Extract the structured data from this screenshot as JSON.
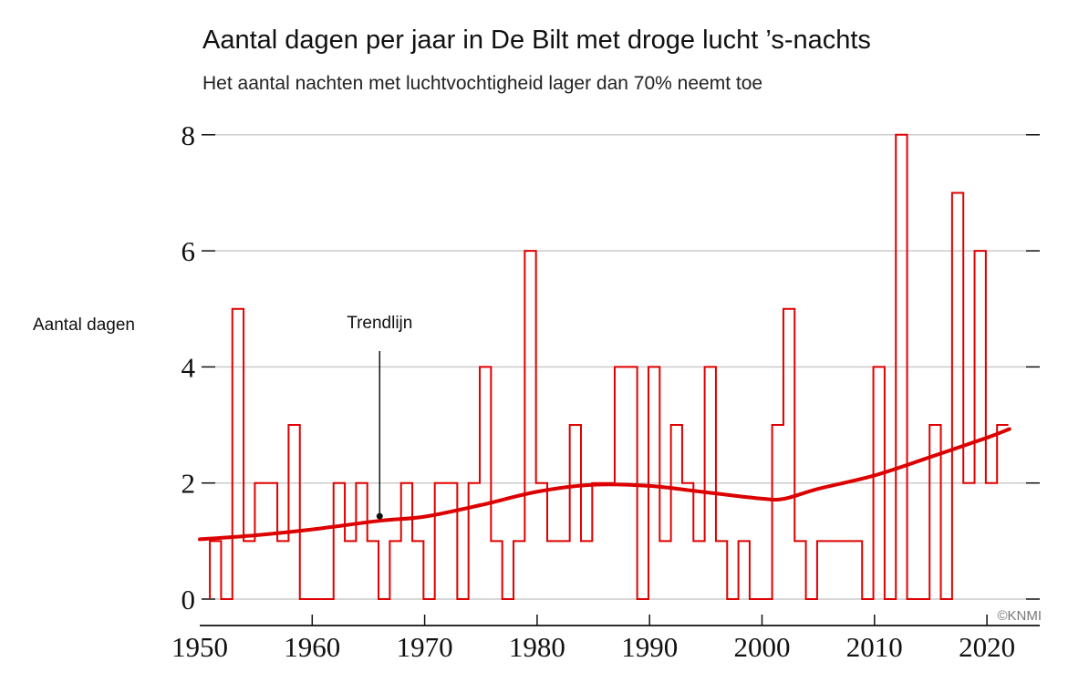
{
  "title": "Aantal dagen per jaar in De Bilt met droge lucht ’s-nachts",
  "subtitle": "Het aantal nachten met luchtvochtigheid lager dan 70% neemt toe",
  "credit": "©KNMI",
  "colors": {
    "series": "#e00000",
    "trend": "#dd0000",
    "grid": "#cccccc",
    "axis": "#111111"
  },
  "chart_data": {
    "type": "line",
    "title": "Aantal dagen per jaar in De Bilt met droge lucht ’s-nachts",
    "subtitle": "Het aantal nachten met luchtvochtigheid lager dan 70% neemt toe",
    "xlabel": "",
    "ylabel": "Aantal dagen",
    "xlim": [
      1950,
      2022
    ],
    "ylim": [
      0,
      8
    ],
    "grid": true,
    "x_ticks": [
      "1950",
      "1960",
      "1970",
      "1980",
      "1990",
      "2000",
      "2010",
      "2020"
    ],
    "y_ticks": [
      "0",
      "2",
      "4",
      "6",
      "8"
    ],
    "series": [
      {
        "name": "Aantal dagen",
        "style": "step",
        "x": [
          1951,
          1952,
          1953,
          1954,
          1955,
          1956,
          1957,
          1958,
          1959,
          1960,
          1961,
          1962,
          1963,
          1964,
          1965,
          1966,
          1967,
          1968,
          1969,
          1970,
          1971,
          1972,
          1973,
          1974,
          1975,
          1976,
          1977,
          1978,
          1979,
          1980,
          1981,
          1982,
          1983,
          1984,
          1985,
          1986,
          1987,
          1988,
          1989,
          1990,
          1991,
          1992,
          1993,
          1994,
          1995,
          1996,
          1997,
          1998,
          1999,
          2000,
          2001,
          2002,
          2003,
          2004,
          2005,
          2006,
          2007,
          2008,
          2009,
          2010,
          2011,
          2012,
          2013,
          2014,
          2015,
          2016,
          2017,
          2018,
          2019,
          2020,
          2021
        ],
        "values": [
          1,
          0,
          5,
          1,
          2,
          2,
          1,
          3,
          0,
          0,
          0,
          2,
          1,
          2,
          1,
          0,
          1,
          2,
          1,
          0,
          2,
          2,
          0,
          2,
          4,
          1,
          0,
          1,
          6,
          2,
          1,
          1,
          3,
          1,
          2,
          2,
          4,
          4,
          0,
          4,
          1,
          3,
          2,
          1,
          4,
          1,
          0,
          1,
          0,
          0,
          3,
          5,
          1,
          0,
          1,
          1,
          1,
          1,
          0,
          4,
          0,
          8,
          0,
          0,
          3,
          0,
          7,
          2,
          6,
          2,
          3
        ]
      },
      {
        "name": "Trendlijn",
        "style": "smooth",
        "x": [
          1950,
          1955,
          1960,
          1966,
          1970,
          1975,
          1980,
          1985,
          1990,
          1995,
          2000,
          2002,
          2005,
          2010,
          2015,
          2020,
          2022
        ],
        "values": [
          1.03,
          1.1,
          1.2,
          1.35,
          1.42,
          1.62,
          1.85,
          1.97,
          1.95,
          1.84,
          1.73,
          1.73,
          1.9,
          2.13,
          2.45,
          2.78,
          2.93
        ]
      }
    ],
    "annotations": [
      {
        "text": "Trendlijn",
        "x": 1966,
        "y": 1.35
      }
    ]
  }
}
